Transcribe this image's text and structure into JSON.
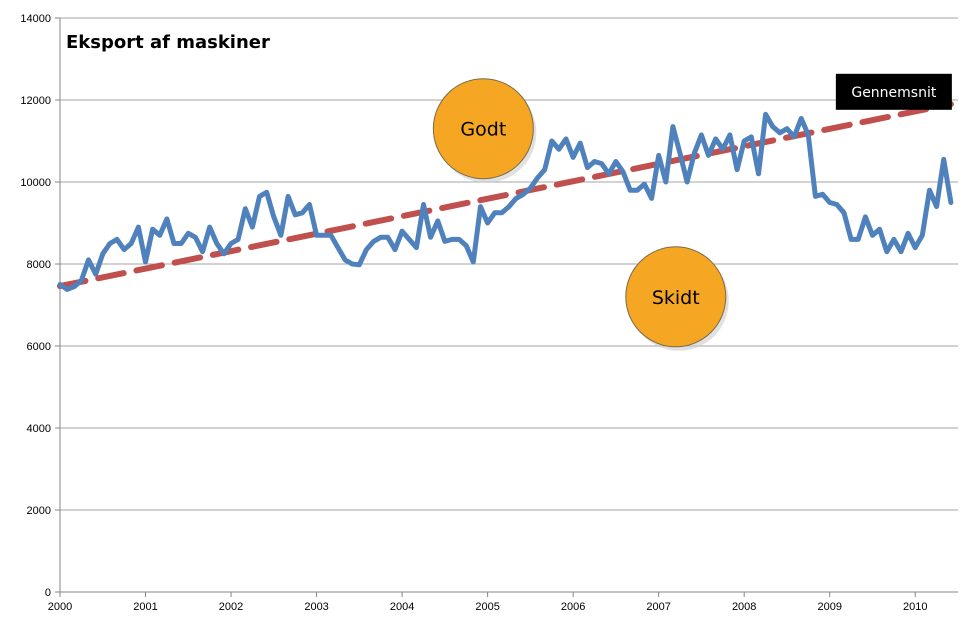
{
  "chart_data": {
    "type": "line",
    "title": "Eksport af maskiner",
    "xlabel": "",
    "ylabel": "",
    "ylim": [
      0,
      14000
    ],
    "yticks": [
      0,
      2000,
      4000,
      6000,
      8000,
      10000,
      12000,
      14000
    ],
    "xlim": [
      2000,
      2010.5
    ],
    "xticks": [
      2000,
      2001,
      2002,
      2003,
      2004,
      2005,
      2006,
      2007,
      2008,
      2009,
      2010
    ],
    "grid": true,
    "legend": "none",
    "series": [
      {
        "name": "",
        "color": "#4F81BD",
        "style": "solid",
        "x": [
          2000.0,
          2000.083,
          2000.167,
          2000.25,
          2000.333,
          2000.417,
          2000.5,
          2000.583,
          2000.667,
          2000.75,
          2000.833,
          2000.917,
          2001.0,
          2001.083,
          2001.167,
          2001.25,
          2001.333,
          2001.417,
          2001.5,
          2001.583,
          2001.667,
          2001.75,
          2001.833,
          2001.917,
          2002.0,
          2002.083,
          2002.167,
          2002.25,
          2002.333,
          2002.417,
          2002.5,
          2002.583,
          2002.667,
          2002.75,
          2002.833,
          2002.917,
          2003.0,
          2003.083,
          2003.167,
          2003.25,
          2003.333,
          2003.417,
          2003.5,
          2003.583,
          2003.667,
          2003.75,
          2003.833,
          2003.917,
          2004.0,
          2004.083,
          2004.167,
          2004.25,
          2004.333,
          2004.417,
          2004.5,
          2004.583,
          2004.667,
          2004.75,
          2004.833,
          2004.917,
          2005.0,
          2005.083,
          2005.167,
          2005.25,
          2005.333,
          2005.417,
          2005.5,
          2005.583,
          2005.667,
          2005.75,
          2005.833,
          2005.917,
          2006.0,
          2006.083,
          2006.167,
          2006.25,
          2006.333,
          2006.417,
          2006.5,
          2006.583,
          2006.667,
          2006.75,
          2006.833,
          2006.917,
          2007.0,
          2007.083,
          2007.167,
          2007.25,
          2007.333,
          2007.417,
          2007.5,
          2007.583,
          2007.667,
          2007.75,
          2007.833,
          2007.917,
          2008.0,
          2008.083,
          2008.167,
          2008.25,
          2008.333,
          2008.417,
          2008.5,
          2008.583,
          2008.667,
          2008.75,
          2008.833,
          2008.917,
          2009.0,
          2009.083,
          2009.167,
          2009.25,
          2009.333,
          2009.417,
          2009.5,
          2009.583,
          2009.667,
          2009.75,
          2009.833,
          2009.917,
          2010.0,
          2010.083,
          2010.167,
          2010.25,
          2010.333,
          2010.417
        ],
        "y": [
          7500,
          7380,
          7450,
          7600,
          8100,
          7750,
          8250,
          8500,
          8600,
          8350,
          8500,
          8900,
          8050,
          8850,
          8700,
          9100,
          8500,
          8500,
          8750,
          8650,
          8300,
          8900,
          8500,
          8250,
          8500,
          8600,
          9350,
          8900,
          9650,
          9750,
          9150,
          8700,
          9650,
          9200,
          9250,
          9450,
          8700,
          8700,
          8700,
          8400,
          8100,
          8000,
          7980,
          8350,
          8550,
          8650,
          8650,
          8350,
          8800,
          8600,
          8400,
          9450,
          8650,
          9050,
          8550,
          8600,
          8600,
          8450,
          8050,
          9400,
          9000,
          9250,
          9250,
          9400,
          9600,
          9700,
          9850,
          10100,
          10300,
          11000,
          10800,
          11050,
          10600,
          10950,
          10350,
          10500,
          10450,
          10200,
          10500,
          10250,
          9800,
          9800,
          9950,
          9600,
          10650,
          10000,
          11350,
          10700,
          10000,
          10700,
          11150,
          10650,
          11050,
          10800,
          11150,
          10300,
          11000,
          11100,
          10200,
          11650,
          11350,
          11200,
          11300,
          11100,
          11550,
          11150,
          9650,
          9700,
          9500,
          9450,
          9250,
          8600,
          8600,
          9150,
          8700,
          8850,
          8300,
          8600,
          8300,
          8750,
          8400,
          8700,
          9800,
          9400,
          10550,
          9500
        ]
      },
      {
        "name": "Gennemsnit",
        "color": "#C0504D",
        "style": "dashed",
        "x": [
          2000.0,
          2010.417
        ],
        "y": [
          7460,
          11900
        ]
      }
    ],
    "annotations": [
      {
        "text": "Godt",
        "x": 2004.95,
        "y": 11300,
        "shape": "circle",
        "color": "#F5A623"
      },
      {
        "text": "Skidt",
        "x": 2007.2,
        "y": 7200,
        "shape": "circle",
        "color": "#F5A623"
      },
      {
        "text": "Gennemsnit",
        "x": 2009.75,
        "y": 12200,
        "shape": "box",
        "color": "#000000"
      }
    ]
  }
}
